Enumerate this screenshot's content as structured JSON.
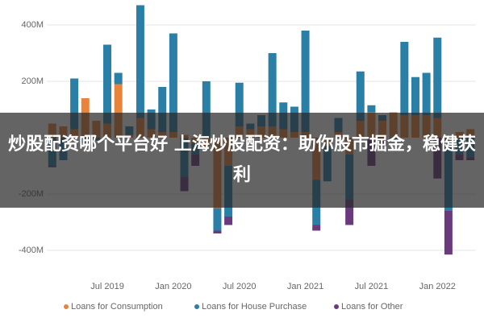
{
  "chart_data": {
    "type": "bar",
    "stacked": true,
    "categories": [
      null,
      null,
      null,
      null,
      null,
      "Jul 2019",
      null,
      null,
      null,
      null,
      null,
      "Jan 2020",
      null,
      null,
      null,
      null,
      null,
      "Jul 2020",
      null,
      null,
      null,
      null,
      null,
      "Jan 2021",
      null,
      null,
      null,
      null,
      null,
      "Jul 2021",
      null,
      null,
      null,
      null,
      null,
      "Jan 2022",
      null,
      null,
      null
    ],
    "series": [
      {
        "name": "Loans for Consumption",
        "color": "#e8833a",
        "values": [
          50,
          40,
          30,
          140,
          60,
          50,
          190,
          10,
          70,
          30,
          20,
          20,
          10,
          -20,
          -30,
          -250,
          -100,
          40,
          30,
          40,
          40,
          30,
          20,
          20,
          -150,
          -30,
          20,
          -60,
          60,
          90,
          60,
          90,
          80,
          80,
          80,
          70,
          -10,
          20,
          30
        ]
      },
      {
        "name": "Loans for House Purchase",
        "color": "#2a7fa6",
        "values": [
          -100,
          -80,
          180,
          -20,
          -10,
          280,
          40,
          30,
          400,
          70,
          160,
          350,
          -140,
          -40,
          200,
          -80,
          -180,
          155,
          20,
          40,
          260,
          95,
          90,
          360,
          -160,
          -125,
          50,
          -160,
          175,
          25,
          20,
          -10,
          260,
          135,
          150,
          285,
          -250,
          -60,
          -70
        ]
      },
      {
        "name": "Loans for Other",
        "color": "#6b3a7d",
        "values": [
          -5,
          0,
          0,
          0,
          0,
          0,
          0,
          0,
          0,
          0,
          0,
          0,
          -50,
          -40,
          0,
          -10,
          -30,
          0,
          0,
          0,
          0,
          0,
          0,
          0,
          -20,
          0,
          0,
          -90,
          0,
          -100,
          -30,
          0,
          0,
          0,
          0,
          -145,
          -155,
          -20,
          -10
        ]
      }
    ],
    "ylim": [
      -480,
      470
    ],
    "yticks": [
      {
        "value": -400,
        "label": "-400M"
      },
      {
        "value": -200,
        "label": "-200M"
      },
      {
        "value": 200,
        "label": "200M"
      },
      {
        "value": 400,
        "label": "400M"
      }
    ],
    "grid": true
  },
  "overlay": {
    "lines": [
      "炒股配资哪个平台好 上海炒股配资：助你股市掘",
      "金，稳健获利"
    ]
  }
}
